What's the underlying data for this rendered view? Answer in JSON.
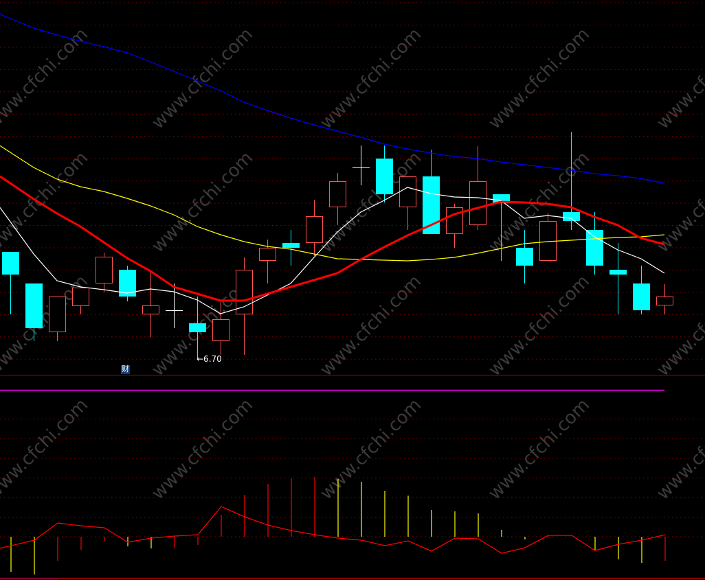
{
  "chart_data": [
    {
      "type": "candlestick",
      "grid": true,
      "colors": {
        "up": "#ff5050",
        "down": "#00ffff",
        "doji": "#ffffff",
        "ma5": "#ffffff",
        "ma10": "#ff0000",
        "ma20": "#ffff00",
        "ma60": "#0000ff",
        "grid": "#8b0000"
      },
      "annotation": {
        "text": "←6.70",
        "candle_index": 8,
        "value": 6.7
      },
      "ohlc": [
        [
          8.26,
          8.26,
          7.35,
          7.93
        ],
        [
          7.8,
          7.8,
          6.96,
          7.15
        ],
        [
          7.09,
          7.61,
          6.96,
          7.61
        ],
        [
          7.47,
          7.74,
          7.35,
          7.74
        ],
        [
          7.8,
          8.25,
          7.67,
          8.19
        ],
        [
          8.0,
          8.06,
          7.54,
          7.61
        ],
        [
          7.35,
          7.98,
          7.02,
          7.48
        ],
        [
          7.41,
          7.8,
          7.15,
          7.41
        ],
        [
          7.22,
          7.61,
          6.7,
          7.09
        ],
        [
          6.96,
          7.53,
          6.76,
          7.28
        ],
        [
          7.35,
          8.18,
          6.76,
          8.0
        ],
        [
          8.13,
          8.44,
          7.8,
          8.32
        ],
        [
          8.39,
          8.58,
          8.06,
          8.32
        ],
        [
          8.39,
          9.02,
          8.2,
          8.78
        ],
        [
          8.91,
          9.41,
          8.65,
          9.29
        ],
        [
          9.49,
          9.81,
          9.23,
          9.49
        ],
        [
          9.62,
          9.81,
          8.98,
          9.1
        ],
        [
          8.91,
          9.36,
          8.58,
          9.36
        ],
        [
          9.36,
          9.75,
          8.52,
          8.52
        ],
        [
          8.52,
          8.96,
          8.32,
          8.91
        ],
        [
          8.65,
          9.8,
          8.58,
          9.29
        ],
        [
          9.1,
          9.1,
          8.13,
          8.97
        ],
        [
          8.32,
          8.58,
          7.8,
          8.06
        ],
        [
          8.13,
          8.83,
          8.13,
          8.71
        ],
        [
          8.84,
          10.01,
          8.58,
          8.71
        ],
        [
          8.58,
          8.84,
          7.93,
          8.06
        ],
        [
          8.0,
          8.39,
          7.35,
          7.93
        ],
        [
          7.8,
          8.06,
          7.35,
          7.41
        ],
        [
          7.48,
          7.79,
          7.35,
          7.61
        ]
      ],
      "ma5": [
        8.7,
        8.23,
        7.84,
        7.75,
        7.71,
        7.66,
        7.72,
        7.68,
        7.56,
        7.36,
        7.46,
        7.63,
        7.8,
        8.18,
        8.55,
        8.84,
        9.01,
        9.2,
        9.11,
        9.06,
        9.05,
        9.01,
        8.75,
        8.79,
        8.75,
        8.48,
        8.29,
        8.16,
        7.95
      ],
      "ma10": [
        9.26,
        9.03,
        8.82,
        8.63,
        8.4,
        8.17,
        7.98,
        7.75,
        7.65,
        7.55,
        7.55,
        7.65,
        7.75,
        7.85,
        7.95,
        8.15,
        8.33,
        8.5,
        8.65,
        8.81,
        8.9,
        8.99,
        8.98,
        8.96,
        8.91,
        8.77,
        8.65,
        8.46,
        8.37
      ],
      "ma20": [
        9.71,
        9.49,
        9.32,
        9.21,
        9.14,
        9.04,
        8.93,
        8.8,
        8.63,
        8.51,
        8.41,
        8.34,
        8.3,
        8.23,
        8.16,
        8.15,
        8.14,
        8.13,
        8.15,
        8.18,
        8.24,
        8.31,
        8.38,
        8.41,
        8.43,
        8.45,
        8.47,
        8.48,
        8.51
      ],
      "ma60": [
        11.66,
        11.52,
        11.42,
        11.33,
        11.25,
        11.16,
        11.03,
        10.89,
        10.75,
        10.61,
        10.44,
        10.32,
        10.21,
        10.11,
        10.02,
        9.93,
        9.83,
        9.76,
        9.7,
        9.65,
        9.62,
        9.57,
        9.53,
        9.49,
        9.45,
        9.4,
        9.37,
        9.33,
        9.26
      ]
    },
    {
      "type": "bar+line",
      "grid": true,
      "bars": [
        {
          "v": -5.1,
          "c": "yellow"
        },
        {
          "v": -5.5,
          "c": "yellow"
        },
        {
          "v": -3.5,
          "c": "red"
        },
        {
          "v": -1.9,
          "c": "red"
        },
        {
          "v": -0.6,
          "c": "red"
        },
        {
          "v": -1.4,
          "c": "yellow"
        },
        {
          "v": -1.7,
          "c": "yellow"
        },
        {
          "v": -1.6,
          "c": "red"
        },
        {
          "v": -1.2,
          "c": "red"
        },
        {
          "v": 3.2,
          "c": "red"
        },
        {
          "v": 6.1,
          "c": "red"
        },
        {
          "v": 7.7,
          "c": "red"
        },
        {
          "v": 8.5,
          "c": "red"
        },
        {
          "v": 8.7,
          "c": "red"
        },
        {
          "v": 8.4,
          "c": "yellow"
        },
        {
          "v": 8.0,
          "c": "yellow"
        },
        {
          "v": 6.7,
          "c": "yellow"
        },
        {
          "v": 6.0,
          "c": "yellow"
        },
        {
          "v": 3.9,
          "c": "yellow"
        },
        {
          "v": 3.7,
          "c": "yellow"
        },
        {
          "v": 3.4,
          "c": "yellow"
        },
        {
          "v": 1.0,
          "c": "yellow"
        },
        {
          "v": -0.4,
          "c": "yellow"
        },
        {
          "v": -0.1,
          "c": "red"
        },
        {
          "v": 0.0,
          "c": "red"
        },
        {
          "v": -2.0,
          "c": "yellow"
        },
        {
          "v": -3.3,
          "c": "yellow"
        },
        {
          "v": -3.8,
          "c": "yellow"
        },
        {
          "v": -3.5,
          "c": "red"
        }
      ],
      "line": [
        -1.3,
        -0.5,
        2.0,
        1.6,
        1.3,
        -0.8,
        -0.2,
        0.1,
        0.3,
        4.4,
        2.9,
        1.7,
        0.9,
        0.3,
        -0.2,
        -0.5,
        -1.3,
        -0.6,
        -2.1,
        -0.2,
        -0.3,
        -2.4,
        -1.6,
        0.2,
        0.2,
        -2.0,
        -1.1,
        -0.5,
        0.3
      ],
      "colors": {
        "red": "#ff0000",
        "yellow": "#ffff00",
        "line": "#ff0000"
      }
    }
  ],
  "badge": {
    "label": "财"
  },
  "watermark": "www.cfchi.com",
  "colors": {
    "background": "#000000",
    "separator": "#b00000",
    "magenta_line": "#ff00ff"
  }
}
